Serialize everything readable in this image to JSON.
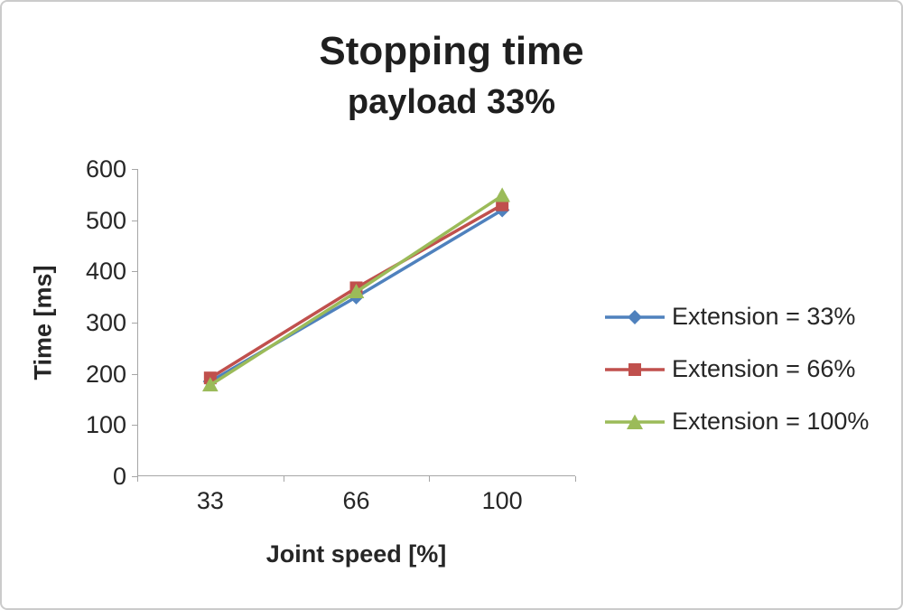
{
  "title": "Stopping time",
  "subtitle": "payload 33%",
  "chart_data": {
    "type": "line",
    "title": "Stopping time",
    "subtitle": "payload 33%",
    "xlabel": "Joint speed [%]",
    "ylabel": "Time [ms]",
    "categories": [
      "33",
      "66",
      "100"
    ],
    "x": [
      33,
      66,
      100
    ],
    "series": [
      {
        "name": "Extension = 33%",
        "values": [
          185,
          350,
          520
        ],
        "color": "#4F81BD",
        "marker": "diamond"
      },
      {
        "name": "Extension = 66%",
        "values": [
          192,
          368,
          530
        ],
        "color": "#C0504D",
        "marker": "square"
      },
      {
        "name": "Extension = 100%",
        "values": [
          178,
          360,
          548
        ],
        "color": "#9BBB59",
        "marker": "triangle"
      }
    ],
    "ylim": [
      0,
      600
    ],
    "ytick_step": 100,
    "yticks": [
      "0",
      "100",
      "200",
      "300",
      "400",
      "500",
      "600"
    ],
    "grid": false,
    "legend_position": "right",
    "axis_color": "#A6A6A6"
  }
}
